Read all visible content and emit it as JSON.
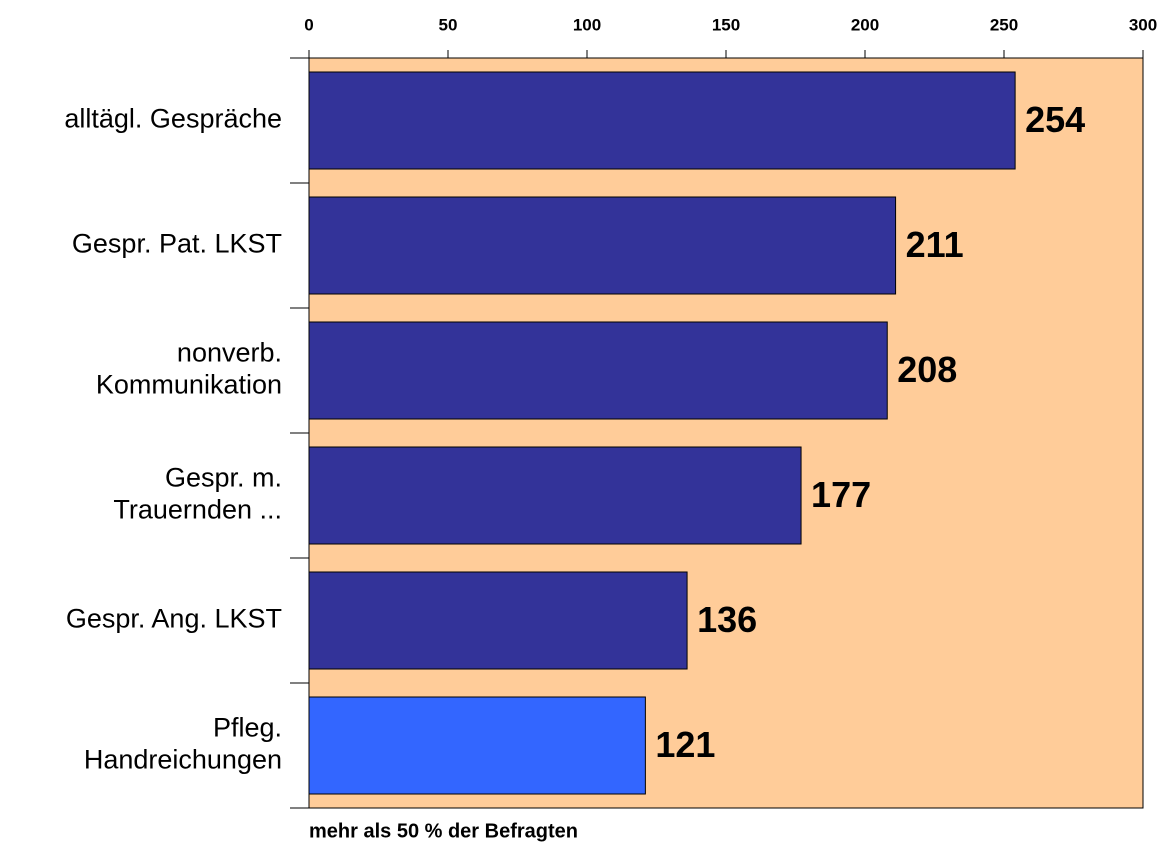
{
  "chart_data": {
    "type": "bar",
    "orientation": "horizontal",
    "categories": [
      "alltägl. Gespräche",
      "Gespr. Pat. LKST",
      "nonverb.\nKommunikation",
      "Gespr. m.\nTrauernden ...",
      "Gespr. Ang. LKST",
      "Pfleg.\nHandreichungen"
    ],
    "values": [
      254,
      211,
      208,
      177,
      136,
      121
    ],
    "colors": [
      "#333399",
      "#333399",
      "#333399",
      "#333399",
      "#333399",
      "#3366ff"
    ],
    "xlim": [
      0,
      300
    ],
    "xticks": [
      0,
      50,
      100,
      150,
      200,
      250,
      300
    ],
    "x_label": "mehr als 50 % der Befragten",
    "background": "#ffcc99"
  }
}
